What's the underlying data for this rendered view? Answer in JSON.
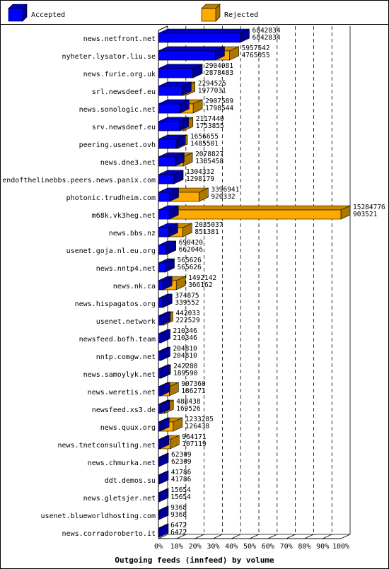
{
  "chart_data": {
    "type": "bar",
    "orientation": "horizontal",
    "title": "Outgoing feeds (innfeed) by volume",
    "legend_position": "top",
    "x_ticks": [
      "0%",
      "10%",
      "20%",
      "30%",
      "40%",
      "50%",
      "60%",
      "70%",
      "80%",
      "90%",
      "100%"
    ],
    "xlim": [
      0,
      15284776
    ],
    "grid": true,
    "series": [
      {
        "name": "Accepted",
        "color": "#0000ff",
        "side_color": "#000099"
      },
      {
        "name": "Rejected",
        "color": "#ffaa00",
        "side_color": "#aa7700"
      }
    ],
    "categories": [
      "news.netfront.net",
      "nyheter.lysator.liu.se",
      "news.furie.org.uk",
      "srl.newsdeef.eu",
      "news.sonologic.net",
      "srv.newsdeef.eu",
      "peering.usenet.ovh",
      "news.dne3.net",
      "endofthelinebbs.peers.news.panix.com",
      "photonic.trudheim.com",
      "m68k.vk3heg.net",
      "news.bbs.nz",
      "usenet.goja.nl.eu.org",
      "news.nntp4.net",
      "news.nk.ca",
      "news.hispagatos.org",
      "usenet.network",
      "newsfeed.bofh.team",
      "nntp.comgw.net",
      "news.samoylyk.net",
      "news.weretis.net",
      "newsfeed.xs3.de",
      "news.quux.org",
      "news.tnetconsulting.net",
      "news.chmurka.net",
      "ddt.demos.su",
      "news.gletsjer.net",
      "usenet.blueworldhosting.com",
      "news.corradoroberto.it"
    ],
    "offered": [
      6842834,
      5957542,
      2904081,
      2294525,
      2907589,
      2117440,
      1656655,
      2078827,
      1304332,
      3396941,
      15284776,
      2035037,
      690420,
      565626,
      1492142,
      374875,
      442033,
      210346,
      204810,
      242280,
      907360,
      488438,
      1233285,
      964171,
      62309,
      41786,
      15654,
      9368,
      6472
    ],
    "accepted": [
      6842834,
      4765055,
      2878483,
      1977031,
      1798544,
      1753855,
      1485501,
      1385458,
      1298179,
      920332,
      903521,
      851381,
      662046,
      565626,
      366162,
      339552,
      222529,
      210346,
      204810,
      189590,
      186271,
      169526,
      126438,
      107119,
      62309,
      41786,
      15654,
      9368,
      6472
    ]
  }
}
